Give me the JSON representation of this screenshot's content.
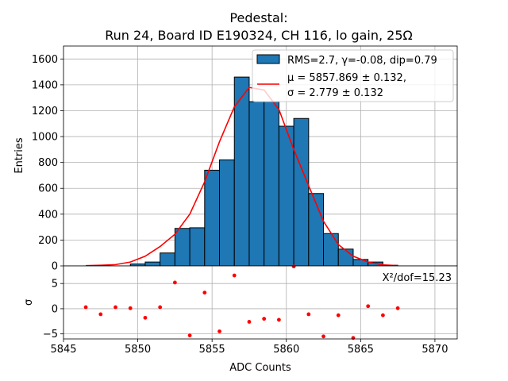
{
  "chart_data": [
    {
      "type": "bar",
      "title_line1": "Pedestal:",
      "title_line2": "Run 24, Board ID E190324, CH 116, lo gain, 25Ω",
      "xlabel": "ADC Counts",
      "ylabel": "Entries",
      "xlim": [
        5845,
        5871.5
      ],
      "ylim": [
        0,
        1700
      ],
      "xticks": [
        5845,
        5850,
        5855,
        5860,
        5865,
        5870
      ],
      "yticks": [
        0,
        200,
        400,
        600,
        800,
        1000,
        1200,
        1400,
        1600
      ],
      "grid": true,
      "legend_position": "top-right",
      "histogram": {
        "label": "RMS=2.7, γ=-0.08, dip=0.79",
        "color": "#1f77b4",
        "bin_edges": [
          5849.5,
          5850.5,
          5851.5,
          5852.5,
          5853.5,
          5854.5,
          5855.5,
          5856.5,
          5857.5,
          5858.5,
          5859.5,
          5860.5,
          5861.5,
          5862.5,
          5863.5,
          5864.5,
          5865.5,
          5866.5,
          5867.5
        ],
        "counts": [
          15,
          30,
          100,
          290,
          295,
          740,
          820,
          1460,
          1270,
          1270,
          1080,
          1140,
          560,
          250,
          130,
          50,
          30,
          5
        ]
      },
      "fit": {
        "label_mu": "μ = 5857.869 ± 0.132,",
        "label_sigma": "σ = 2.779 ± 0.132",
        "color": "#ff0000",
        "x": [
          5846.5,
          5847.5,
          5848.5,
          5849.5,
          5850.5,
          5851.5,
          5852.5,
          5853.5,
          5854.5,
          5855.5,
          5856.5,
          5857.5,
          5858.5,
          5859.5,
          5860.5,
          5861.5,
          5862.5,
          5863.5,
          5864.5,
          5865.5,
          5866.5,
          5867.5
        ],
        "y": [
          2,
          5,
          10,
          30,
          75,
          150,
          245,
          400,
          650,
          960,
          1230,
          1380,
          1360,
          1210,
          900,
          620,
          345,
          165,
          75,
          30,
          8,
          2
        ]
      }
    },
    {
      "type": "scatter",
      "ylabel": "σ",
      "xlim": [
        5845,
        5871.5
      ],
      "ylim": [
        -6,
        8.5
      ],
      "yticks": [
        -5,
        0,
        5
      ],
      "grid": true,
      "annotation": "X²/dof=15.23",
      "color": "#ff0000",
      "x": [
        5846.5,
        5847.5,
        5848.5,
        5849.5,
        5850.5,
        5851.5,
        5852.5,
        5853.5,
        5854.5,
        5855.5,
        5856.5,
        5857.5,
        5858.5,
        5859.5,
        5860.5,
        5861.5,
        5862.5,
        5863.5,
        5864.5,
        5865.5,
        5866.5,
        5867.5
      ],
      "y": [
        0.3,
        -1.1,
        0.3,
        0.1,
        -1.8,
        0.3,
        5.2,
        -5.3,
        3.2,
        -4.5,
        6.6,
        -2.6,
        -2.0,
        -2.2,
        8.4,
        -1.1,
        -5.5,
        -1.3,
        -5.8,
        0.5,
        -1.3,
        0.1
      ]
    }
  ]
}
